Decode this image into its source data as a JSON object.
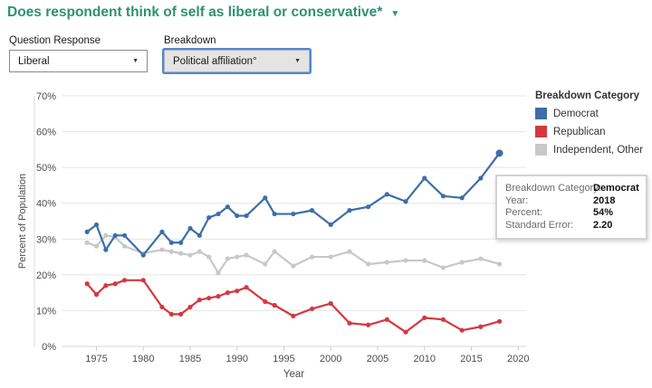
{
  "page": {
    "title": "Does respondent think of self as liberal or conservative*",
    "title_caret": "▼"
  },
  "controls": {
    "question_response": {
      "label": "Question Response",
      "value": "Liberal",
      "caret": "▼"
    },
    "breakdown": {
      "label": "Breakdown",
      "value": "Political affiliation°",
      "caret": "▼"
    }
  },
  "legend": {
    "title": "Breakdown Category",
    "items": [
      {
        "label": "Democrat",
        "color": "#3d6ea8"
      },
      {
        "label": "Republican",
        "color": "#d6373f"
      },
      {
        "label": "Independent, Other",
        "color": "#c8c8c8"
      }
    ]
  },
  "tooltip": {
    "rows": [
      {
        "label": "Breakdown Category:",
        "value": "Democrat"
      },
      {
        "label": "Year:",
        "value": "2018"
      },
      {
        "label": "Percent:",
        "value": "54%"
      },
      {
        "label": "Standard Error:",
        "value": "2.20"
      }
    ]
  },
  "chart_data": {
    "type": "line",
    "title": "",
    "xlabel": "Year",
    "ylabel": "Percent of Population",
    "ylim": [
      0,
      70
    ],
    "yticks": [
      0,
      10,
      20,
      30,
      40,
      50,
      60,
      70
    ],
    "ytick_suffix": "%",
    "xticks": [
      1975,
      1980,
      1985,
      1990,
      1995,
      2000,
      2005,
      2010,
      2015,
      2020
    ],
    "grid": true,
    "legend_position": "right",
    "x": [
      1974,
      1975,
      1976,
      1977,
      1978,
      1980,
      1982,
      1983,
      1984,
      1985,
      1986,
      1987,
      1988,
      1989,
      1990,
      1991,
      1993,
      1994,
      1996,
      1998,
      2000,
      2002,
      2004,
      2006,
      2008,
      2010,
      2012,
      2014,
      2016,
      2018
    ],
    "series": [
      {
        "name": "Democrat",
        "color": "#3d6ea8",
        "values": [
          32,
          34,
          27,
          31,
          31,
          25.5,
          32,
          29,
          29,
          33,
          31,
          36,
          37,
          39,
          36.5,
          36.5,
          41.5,
          37,
          37,
          38,
          34,
          38,
          39,
          42.5,
          40.5,
          47,
          42,
          41.5,
          47,
          54
        ],
        "highlight_last": true
      },
      {
        "name": "Republican",
        "color": "#d6373f",
        "values": [
          17.5,
          14.5,
          17,
          17.5,
          18.5,
          18.5,
          11,
          9,
          9,
          11,
          13,
          13.5,
          14,
          15,
          15.5,
          16.5,
          12.5,
          11.5,
          8.5,
          10.5,
          12,
          6.5,
          6,
          7.5,
          4,
          8,
          7.5,
          4.5,
          5.5,
          7
        ],
        "highlight_last": false
      },
      {
        "name": "Independent, Other",
        "color": "#c8c8c8",
        "values": [
          29,
          28,
          31,
          30.5,
          28,
          26,
          27,
          26.5,
          26,
          25.5,
          26.5,
          25,
          20.5,
          24.5,
          25,
          25.5,
          23,
          26.5,
          22.5,
          25,
          25,
          26.5,
          23,
          23.5,
          24,
          24,
          22,
          23.5,
          24.5,
          23
        ],
        "highlight_last": false
      }
    ],
    "hovered_point": {
      "series": "Democrat",
      "year": 2018,
      "percent": "54%",
      "standard_error": "2.20"
    }
  }
}
